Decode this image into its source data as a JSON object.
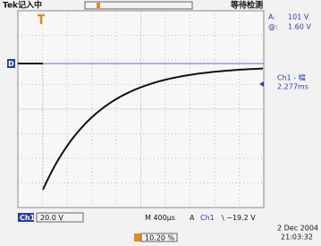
{
  "header": {
    "status": "Tek记入中",
    "trigger_state": "等待检测"
  },
  "cursor_readout": {
    "delta_label": "A:",
    "delta_value": "101 V",
    "at_label": "@:",
    "at_value": "1.60 V"
  },
  "measurement": {
    "name": "Ch1 - 幅",
    "value": "2.277ms"
  },
  "ref_marker": "D",
  "footer": {
    "channel": "Ch1",
    "scale": "20.0 V",
    "timebase": "M 400μs",
    "trigger_mode": "A",
    "trigger_source": "Ch1",
    "trigger_level": "\\ −19.2 V",
    "date": "2 Dec 2004",
    "time": "21:03:32",
    "position": "10.20 %"
  }
}
